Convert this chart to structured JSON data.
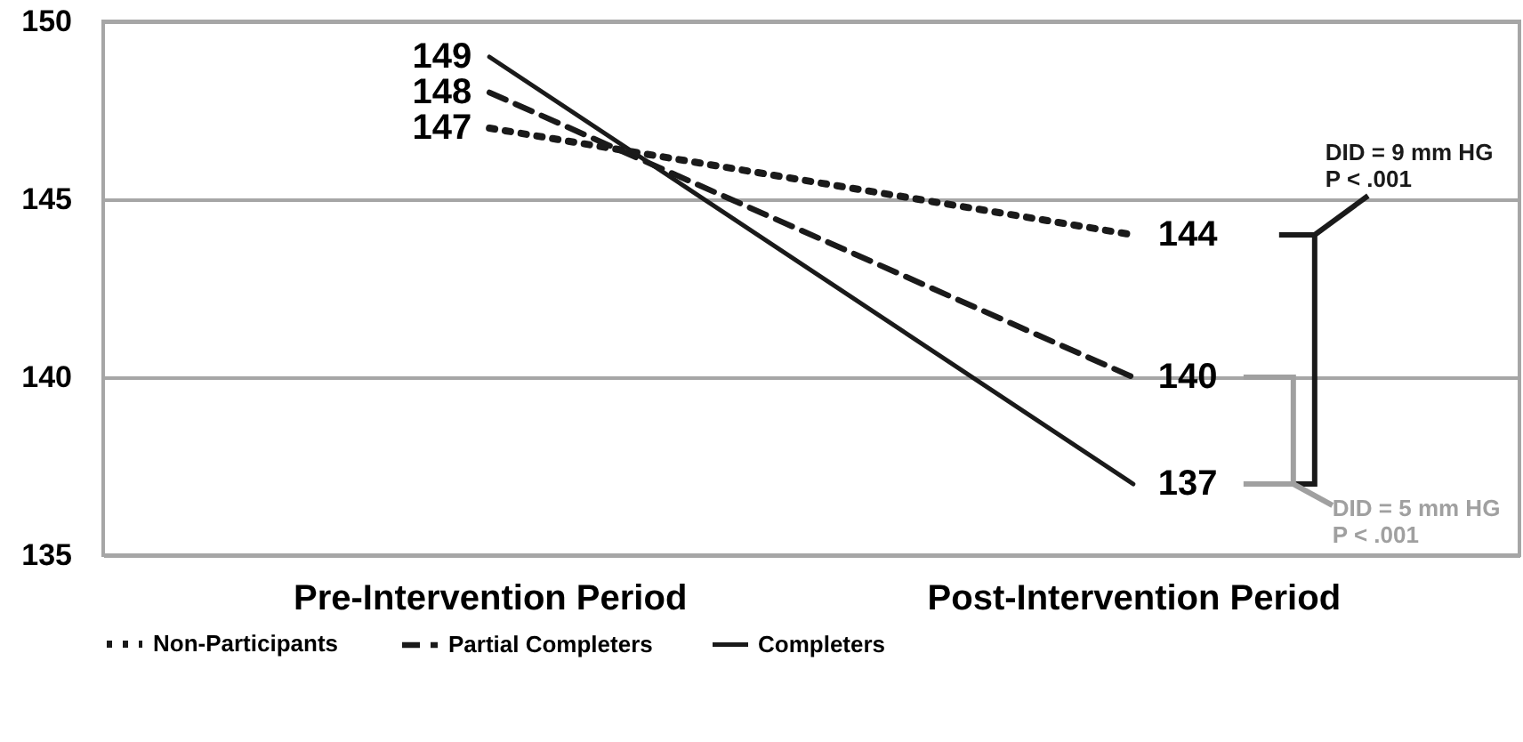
{
  "chart_data": {
    "type": "line",
    "categories": [
      "Pre-Intervention Period",
      "Post-Intervention Period"
    ],
    "series": [
      {
        "name": "Non-Participants",
        "color": "#1a1a1a",
        "line_style": "dotted",
        "values": [
          147,
          144
        ]
      },
      {
        "name": "Partial Completers",
        "color": "#1a1a1a",
        "line_style": "dashed",
        "values": [
          148,
          140
        ]
      },
      {
        "name": "Completers",
        "color": "#1a1a1a",
        "line_style": "solid",
        "values": [
          149,
          137
        ]
      }
    ],
    "ylim": [
      135,
      150
    ],
    "yticks": [
      135,
      140,
      145,
      150
    ],
    "grid": "y",
    "legend": "bottom",
    "data_labels": true,
    "marker": "none",
    "annotations": [
      "DID = 9 mm HG",
      "P < .001",
      "DID = 5 mm HG",
      "P < .001"
    ]
  }
}
